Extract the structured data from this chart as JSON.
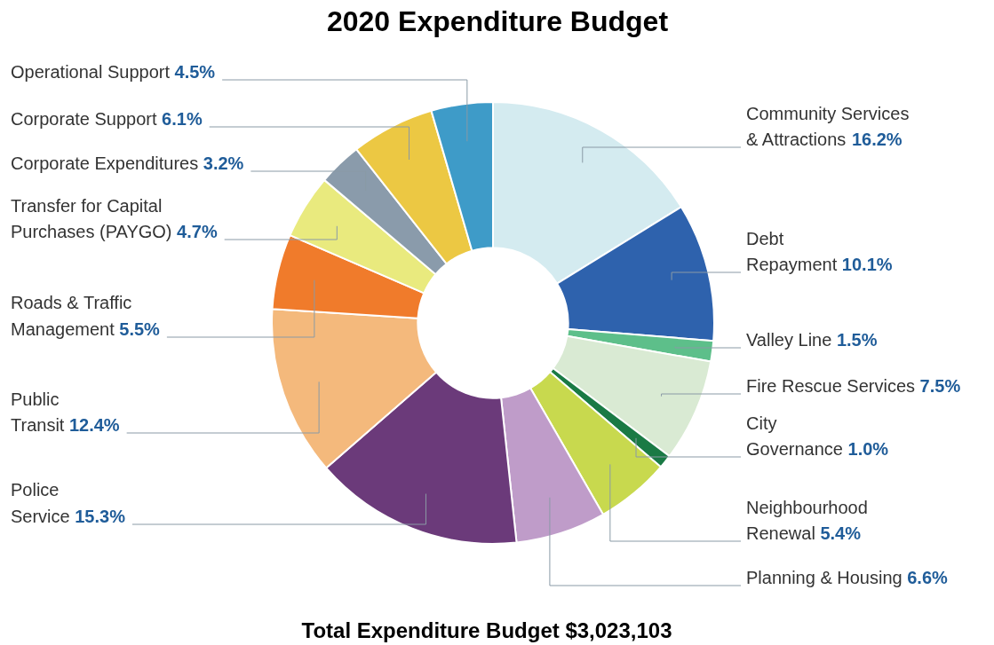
{
  "chart_data": {
    "type": "donut",
    "title": "2020 Expenditure Budget",
    "categories": [
      "Community Services & Attractions",
      "Debt Repayment",
      "Valley Line",
      "Fire Rescue Services",
      "City Governance",
      "Neighbourhood Renewal",
      "Planning & Housing",
      "Police Service",
      "Public Transit",
      "Roads & Traffic Management",
      "Transfer for Capital Purchases (PAYGO)",
      "Corporate Expenditures",
      "Corporate Support",
      "Operational Support"
    ],
    "values": [
      16.2,
      10.1,
      1.5,
      7.5,
      1.0,
      5.4,
      6.6,
      15.3,
      12.4,
      5.5,
      4.7,
      3.2,
      6.1,
      4.5
    ],
    "value_labels": [
      "16.2%",
      "10.1%",
      "1.5%",
      "7.5%",
      "1.0%",
      "5.4%",
      "6.6%",
      "15.3%",
      "12.4%",
      "5.5%",
      "4.7%",
      "3.2%",
      "6.1%",
      "4.5%"
    ],
    "colors": [
      "#d4ebf0",
      "#2e62ad",
      "#5dbf8a",
      "#d9ead3",
      "#1a7a45",
      "#c8d94e",
      "#bf9cc9",
      "#6b3a7a",
      "#f4b97c",
      "#f07b2b",
      "#e9ea7e",
      "#8a9bab",
      "#ecc843",
      "#3e9bc8"
    ],
    "annotations": [
      "Total Expenditure Budget $3,023,103"
    ],
    "legend": false
  }
}
